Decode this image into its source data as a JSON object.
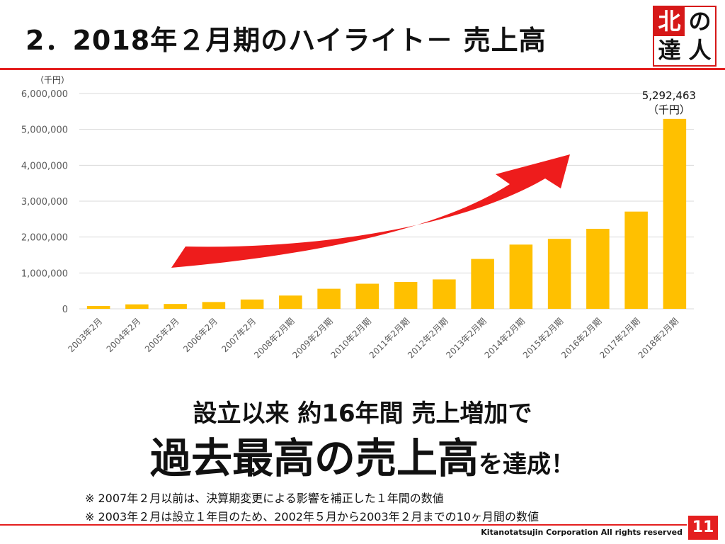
{
  "slide": {
    "title": "2．2018年２月期のハイライト－ 売上高",
    "logo": {
      "c1": "北",
      "c2": "の",
      "c3": "達",
      "c4": "人"
    },
    "headline_line1": "設立以来 約16年間 売上増加で",
    "headline_line2_big": "過去最高の売上高",
    "headline_line2_small": "を達成！",
    "notes": [
      "※ 2007年２月以前は、決算期変更による影響を補正した１年間の数値",
      "※ 2003年２月は設立１年目のため、2002年５月から2003年２月までの10ヶ月間の数値"
    ],
    "footer": "Kitanotatsujin Corporation All rights reserved",
    "page_number": "11"
  },
  "colors": {
    "accent_red": "#e41f1f",
    "bar": "#ffc000",
    "arrow": "#ee1c1c"
  },
  "chart_data": {
    "type": "bar",
    "unit_label": "（千円）",
    "categories": [
      "2003年2月",
      "2004年2月",
      "2005年2月",
      "2006年2月",
      "2007年2月",
      "2008年2月期",
      "2009年2月期",
      "2010年2月期",
      "2011年2月期",
      "2012年2月期",
      "2013年2月期",
      "2014年2月期",
      "2015年2月期",
      "2016年2月期",
      "2017年2月期",
      "2018年2月期"
    ],
    "values": [
      80000,
      125000,
      135000,
      190000,
      260000,
      370000,
      560000,
      700000,
      750000,
      820000,
      1390000,
      1790000,
      1950000,
      2230000,
      2710000,
      5292463
    ],
    "ylim": [
      0,
      6000000
    ],
    "yticks": [
      "0",
      "1,000,000",
      "2,000,000",
      "3,000,000",
      "4,000,000",
      "5,000,000",
      "6,000,000"
    ],
    "highlight_label": "5,292,463",
    "highlight_unit": "（千円）",
    "grid": true
  }
}
